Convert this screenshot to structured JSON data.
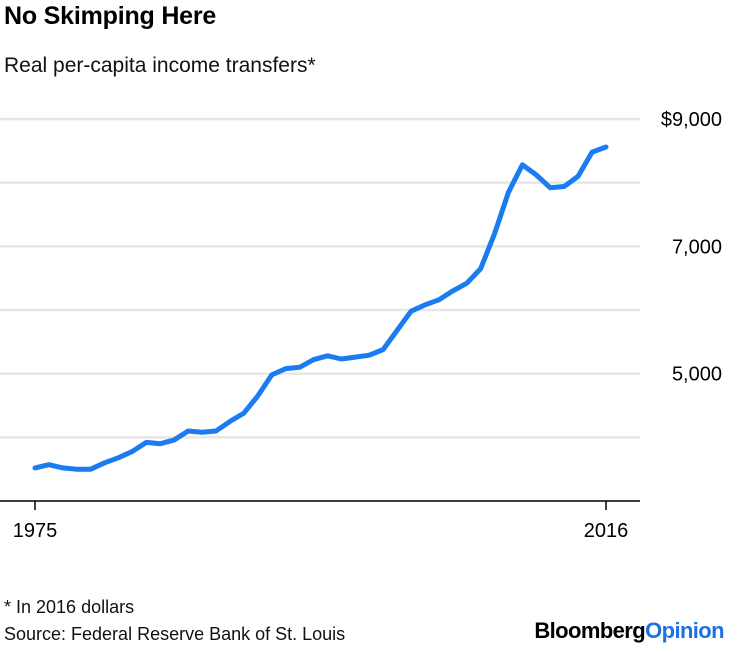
{
  "title": "No Skimping Here",
  "subtitle": "Real per-capita income transfers*",
  "footnote": "* In 2016 dollars",
  "source": "Source: Federal Reserve Bank of St. Louis",
  "brand": {
    "part1": "Bloomberg",
    "part2": "Opinion"
  },
  "colors": {
    "line": "#1a7bf2",
    "grid": "#e6e6e6",
    "axis": "#000000",
    "brand_accent": "#1f6fe5"
  },
  "chart_data": {
    "type": "line",
    "title": "No Skimping Here",
    "subtitle": "Real per-capita income transfers*",
    "xlabel": "",
    "ylabel": "",
    "xlim": [
      1975,
      2016
    ],
    "ylim": [
      3000,
      9000
    ],
    "gridlines": [
      4000,
      5000,
      6000,
      7000,
      8000,
      9000
    ],
    "yticks": [
      {
        "value": 5000,
        "label": "5,000"
      },
      {
        "value": 7000,
        "label": "7,000"
      },
      {
        "value": 9000,
        "label": "$9,000"
      }
    ],
    "xticks": [
      {
        "value": 1975,
        "label": "1975"
      },
      {
        "value": 2016,
        "label": "2016"
      }
    ],
    "series": [
      {
        "name": "Real per-capita income transfers",
        "x": [
          1975,
          1976,
          1977,
          1978,
          1979,
          1980,
          1981,
          1982,
          1983,
          1984,
          1985,
          1986,
          1987,
          1988,
          1989,
          1990,
          1991,
          1992,
          1993,
          1994,
          1995,
          1996,
          1997,
          1998,
          1999,
          2000,
          2001,
          2002,
          2003,
          2004,
          2005,
          2006,
          2007,
          2008,
          2009,
          2010,
          2011,
          2012,
          2013,
          2014,
          2015,
          2016
        ],
        "values": [
          3520,
          3570,
          3520,
          3500,
          3500,
          3600,
          3680,
          3780,
          3920,
          3900,
          3960,
          4100,
          4080,
          4100,
          4250,
          4380,
          4650,
          4980,
          5080,
          5100,
          5220,
          5280,
          5230,
          5260,
          5290,
          5380,
          5680,
          5980,
          6080,
          6160,
          6300,
          6420,
          6650,
          7200,
          7850,
          8280,
          8120,
          7920,
          7940,
          8100,
          8480,
          8560
        ]
      }
    ]
  }
}
